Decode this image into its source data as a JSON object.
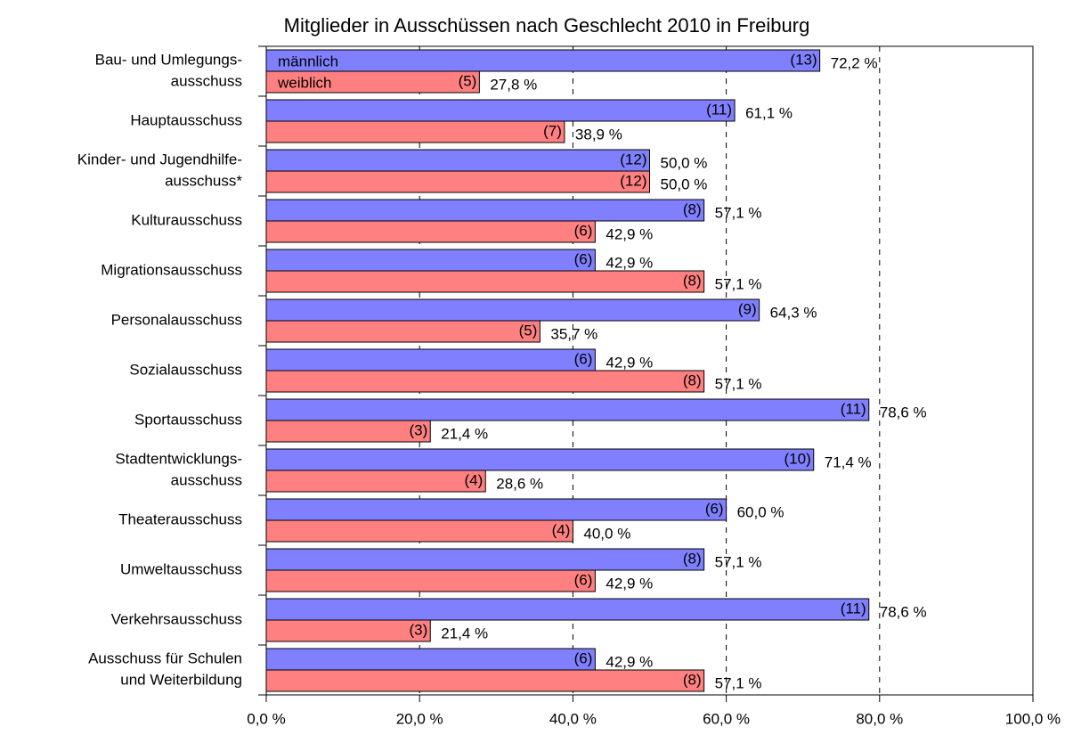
{
  "chart_data": {
    "type": "bar",
    "orientation": "horizontal",
    "title": "Mitglieder in Ausschüssen nach Geschlecht 2010 in Freiburg",
    "categories": [
      [
        "Bau- und Umlegungs-",
        "ausschuss"
      ],
      [
        "Hauptausschuss"
      ],
      [
        "Kinder- und Jugendhilfe-",
        "ausschuss*"
      ],
      [
        "Kulturausschuss"
      ],
      [
        "Migrationsausschuss"
      ],
      [
        "Personalausschuss"
      ],
      [
        "Sozialausschuss"
      ],
      [
        "Sportausschuss"
      ],
      [
        "Stadtentwicklungs-",
        "ausschuss"
      ],
      [
        "Theaterausschuss"
      ],
      [
        "Umweltausschuss"
      ],
      [
        "Verkehrsausschuss"
      ],
      [
        "Ausschuss für Schulen",
        "und Weiterbildung"
      ]
    ],
    "series": [
      {
        "name": "männlich",
        "color": "#8080ff",
        "values": [
          72.2,
          61.1,
          50.0,
          57.1,
          42.9,
          64.3,
          42.9,
          78.6,
          71.4,
          60.0,
          57.1,
          78.6,
          42.9
        ],
        "value_labels": [
          "72,2 %",
          "61,1 %",
          "50,0 %",
          "57,1 %",
          "42,9 %",
          "64,3 %",
          "42,9 %",
          "78,6 %",
          "71,4 %",
          "60,0 %",
          "57,1 %",
          "78,6 %",
          "42,9 %"
        ],
        "count_labels": [
          "(13)",
          "(11)",
          "(12)",
          "(8)",
          "(6)",
          "(9)",
          "(6)",
          "(11)",
          "(10)",
          "(6)",
          "(8)",
          "(11)",
          "(6)"
        ]
      },
      {
        "name": "weiblich",
        "color": "#ff8080",
        "values": [
          27.8,
          38.9,
          50.0,
          42.9,
          57.1,
          35.7,
          57.1,
          21.4,
          28.6,
          40.0,
          42.9,
          21.4,
          57.1
        ],
        "value_labels": [
          "27,8 %",
          "38,9 %",
          "50,0 %",
          "42,9 %",
          "57,1 %",
          "35,7 %",
          "57,1 %",
          "21,4 %",
          "28,6 %",
          "40,0 %",
          "42,9 %",
          "21,4 %",
          "57,1 %"
        ],
        "count_labels": [
          "(5)",
          "(7)",
          "(12)",
          "(6)",
          "(8)",
          "(5)",
          "(8)",
          "(3)",
          "(4)",
          "(4)",
          "(6)",
          "(3)",
          "(8)"
        ]
      }
    ],
    "xlim": [
      0,
      100
    ],
    "xticks": [
      {
        "value": 0,
        "label": "0,0 %"
      },
      {
        "value": 20,
        "label": "20,0 %"
      },
      {
        "value": 40,
        "label": "40,0 %"
      },
      {
        "value": 60,
        "label": "60,0 %"
      },
      {
        "value": 80,
        "label": "80,0 %"
      },
      {
        "value": 100,
        "label": "100,0 %"
      }
    ],
    "grid": true
  }
}
